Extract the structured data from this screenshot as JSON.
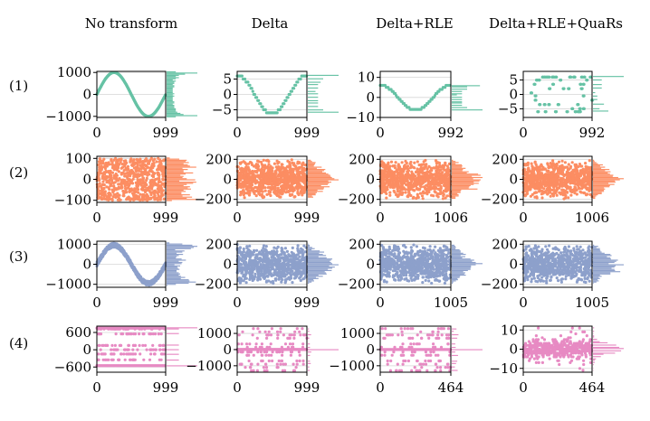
{
  "figure": {
    "column_titles": [
      "No transform",
      "Delta",
      "Delta+RLE",
      "Delta+RLE+QuaRs"
    ],
    "row_labels": [
      "(1)",
      "(2)",
      "(3)",
      "(4)"
    ],
    "row_colors": [
      "#66c2a5",
      "#fc8d62",
      "#8da0cb",
      "#e78ac3"
    ]
  },
  "chart_data": [
    {
      "type": "scatter",
      "row": 1,
      "col": 1,
      "row_label": "(1)",
      "column": "No transform",
      "x": [
        0,
        999
      ],
      "ylim": [
        -1050,
        1050
      ],
      "yticks": [
        {
          "v": 1000,
          "t": "1000"
        },
        {
          "v": 0,
          "t": "0"
        },
        {
          "v": -1000,
          "t": "−1000"
        }
      ],
      "xticks": [
        {
          "v": 0,
          "t": "0"
        },
        {
          "v": 999,
          "t": "999"
        }
      ],
      "pattern": "sine",
      "amplitude": 1000,
      "period": 999,
      "marginal": "histogram"
    },
    {
      "type": "scatter",
      "row": 1,
      "col": 2,
      "row_label": "(1)",
      "column": "Delta",
      "x": [
        0,
        999
      ],
      "ylim": [
        -7.5,
        7.5
      ],
      "yticks": [
        {
          "v": 5,
          "t": "5"
        },
        {
          "v": 0,
          "t": "0"
        },
        {
          "v": -5,
          "t": "−5"
        }
      ],
      "xticks": [
        {
          "v": 0,
          "t": "0"
        },
        {
          "v": 999,
          "t": "999"
        }
      ],
      "pattern": "stepped-cosine",
      "amplitude": 6.3,
      "marginal": "histogram"
    },
    {
      "type": "scatter",
      "row": 1,
      "col": 3,
      "row_label": "(1)",
      "column": "Delta+RLE",
      "x": [
        0,
        992
      ],
      "ylim": [
        -10,
        13
      ],
      "yticks": [
        {
          "v": 10,
          "t": "10"
        },
        {
          "v": 0,
          "t": "0"
        },
        {
          "v": -10,
          "t": "−10"
        }
      ],
      "xticks": [
        {
          "v": 0,
          "t": "0"
        },
        {
          "v": 992,
          "t": "992"
        }
      ],
      "pattern": "stepped-cosine",
      "amplitude": 6.3,
      "marginal": "histogram"
    },
    {
      "type": "scatter",
      "row": 1,
      "col": 4,
      "row_label": "(1)",
      "column": "Delta+RLE+QuaRs",
      "x": [
        0,
        992
      ],
      "ylim": [
        -8,
        8
      ],
      "yticks": [
        {
          "v": 5,
          "t": "5"
        },
        {
          "v": 0,
          "t": "0"
        },
        {
          "v": -5,
          "t": "−5"
        }
      ],
      "xticks": [
        {
          "v": 0,
          "t": "0"
        },
        {
          "v": 992,
          "t": "992"
        }
      ],
      "pattern": "quantized-levels",
      "marginal": "histogram"
    },
    {
      "type": "scatter",
      "row": 2,
      "col": 1,
      "row_label": "(2)",
      "column": "No transform",
      "x": [
        0,
        999
      ],
      "ylim": [
        -110,
        110
      ],
      "yticks": [
        {
          "v": 100,
          "t": "100"
        },
        {
          "v": 0,
          "t": "0"
        },
        {
          "v": -100,
          "t": "−100"
        }
      ],
      "xticks": [
        {
          "v": 0,
          "t": "0"
        },
        {
          "v": 999,
          "t": "999"
        }
      ],
      "pattern": "uniform-noise",
      "amplitude": 100,
      "marginal": "histogram"
    },
    {
      "type": "scatter",
      "row": 2,
      "col": 2,
      "row_label": "(2)",
      "column": "Delta",
      "x": [
        0,
        999
      ],
      "ylim": [
        -230,
        230
      ],
      "yticks": [
        {
          "v": 200,
          "t": "200"
        },
        {
          "v": 0,
          "t": "0"
        },
        {
          "v": -200,
          "t": "−200"
        }
      ],
      "xticks": [
        {
          "v": 0,
          "t": "0"
        },
        {
          "v": 999,
          "t": "999"
        }
      ],
      "pattern": "triangular-noise",
      "amplitude": 200,
      "marginal": "histogram"
    },
    {
      "type": "scatter",
      "row": 2,
      "col": 3,
      "row_label": "(2)",
      "column": "Delta+RLE",
      "x": [
        0,
        1006
      ],
      "ylim": [
        -230,
        230
      ],
      "yticks": [
        {
          "v": 200,
          "t": "200"
        },
        {
          "v": 0,
          "t": "0"
        },
        {
          "v": -200,
          "t": "−200"
        }
      ],
      "xticks": [
        {
          "v": 0,
          "t": "0"
        },
        {
          "v": 1006,
          "t": "1006"
        }
      ],
      "pattern": "triangular-noise",
      "amplitude": 200,
      "marginal": "histogram"
    },
    {
      "type": "scatter",
      "row": 2,
      "col": 4,
      "row_label": "(2)",
      "column": "Delta+RLE+QuaRs",
      "x": [
        0,
        1006
      ],
      "ylim": [
        -230,
        230
      ],
      "yticks": [
        {
          "v": 200,
          "t": "200"
        },
        {
          "v": 0,
          "t": "0"
        },
        {
          "v": -200,
          "t": "−200"
        }
      ],
      "xticks": [
        {
          "v": 0,
          "t": "0"
        },
        {
          "v": 1006,
          "t": "1006"
        }
      ],
      "pattern": "triangular-noise",
      "amplitude": 200,
      "marginal": "histogram"
    },
    {
      "type": "scatter",
      "row": 3,
      "col": 1,
      "row_label": "(3)",
      "column": "No transform",
      "x": [
        0,
        999
      ],
      "ylim": [
        -1150,
        1150
      ],
      "yticks": [
        {
          "v": 1000,
          "t": "1000"
        },
        {
          "v": 0,
          "t": "0"
        },
        {
          "v": -1000,
          "t": "−1000"
        }
      ],
      "xticks": [
        {
          "v": 0,
          "t": "0"
        },
        {
          "v": 999,
          "t": "999"
        }
      ],
      "pattern": "noisy-sine",
      "amplitude": 950,
      "noise": 100,
      "marginal": "histogram"
    },
    {
      "type": "scatter",
      "row": 3,
      "col": 2,
      "row_label": "(3)",
      "column": "Delta",
      "x": [
        0,
        999
      ],
      "ylim": [
        -230,
        230
      ],
      "yticks": [
        {
          "v": 200,
          "t": "200"
        },
        {
          "v": 0,
          "t": "0"
        },
        {
          "v": -200,
          "t": "−200"
        }
      ],
      "xticks": [
        {
          "v": 0,
          "t": "0"
        },
        {
          "v": 999,
          "t": "999"
        }
      ],
      "pattern": "triangular-noise",
      "amplitude": 200,
      "marginal": "histogram"
    },
    {
      "type": "scatter",
      "row": 3,
      "col": 3,
      "row_label": "(3)",
      "column": "Delta+RLE",
      "x": [
        0,
        1005
      ],
      "ylim": [
        -230,
        230
      ],
      "yticks": [
        {
          "v": 200,
          "t": "200"
        },
        {
          "v": 0,
          "t": "0"
        },
        {
          "v": -200,
          "t": "−200"
        }
      ],
      "xticks": [
        {
          "v": 0,
          "t": "0"
        },
        {
          "v": 1005,
          "t": "1005"
        }
      ],
      "pattern": "triangular-noise",
      "amplitude": 200,
      "marginal": "histogram"
    },
    {
      "type": "scatter",
      "row": 3,
      "col": 4,
      "row_label": "(3)",
      "column": "Delta+RLE+QuaRs",
      "x": [
        0,
        1005
      ],
      "ylim": [
        -230,
        230
      ],
      "yticks": [
        {
          "v": 200,
          "t": "200"
        },
        {
          "v": 0,
          "t": "0"
        },
        {
          "v": -200,
          "t": "−200"
        }
      ],
      "xticks": [
        {
          "v": 0,
          "t": "0"
        },
        {
          "v": 1005,
          "t": "1005"
        }
      ],
      "pattern": "triangular-noise",
      "amplitude": 200,
      "marginal": "histogram"
    },
    {
      "type": "scatter",
      "row": 4,
      "col": 1,
      "row_label": "(4)",
      "column": "No transform",
      "x": [
        0,
        999
      ],
      "ylim": [
        -780,
        820
      ],
      "yticks": [
        {
          "v": 600,
          "t": "600"
        },
        {
          "v": 0,
          "t": "0"
        },
        {
          "v": -600,
          "t": "−600"
        }
      ],
      "xticks": [
        {
          "v": 0,
          "t": "0"
        },
        {
          "v": 999,
          "t": "999"
        }
      ],
      "pattern": "discrete-levels",
      "levels": [
        750,
        720,
        550,
        150,
        0,
        -150,
        -350,
        -550
      ],
      "marginal": "histogram"
    },
    {
      "type": "scatter",
      "row": 4,
      "col": 2,
      "row_label": "(4)",
      "column": "Delta",
      "x": [
        0,
        999
      ],
      "ylim": [
        -1400,
        1450
      ],
      "yticks": [
        {
          "v": 1000,
          "t": "1000"
        },
        {
          "v": 0,
          "t": "0"
        },
        {
          "v": -1000,
          "t": "−1000"
        }
      ],
      "xticks": [
        {
          "v": 0,
          "t": "0"
        },
        {
          "v": 999,
          "t": "999"
        }
      ],
      "pattern": "sparse-discrete",
      "levels": [
        1300,
        1100,
        900,
        700,
        350,
        150,
        -150,
        -350,
        -700,
        -900,
        -1100,
        -1300
      ],
      "marginal": "histogram"
    },
    {
      "type": "scatter",
      "row": 4,
      "col": 3,
      "row_label": "(4)",
      "column": "Delta+RLE",
      "x": [
        0,
        464
      ],
      "ylim": [
        -1400,
        1450
      ],
      "yticks": [
        {
          "v": 1000,
          "t": "1000"
        },
        {
          "v": 0,
          "t": "0"
        },
        {
          "v": -1000,
          "t": "−1000"
        }
      ],
      "xticks": [
        {
          "v": 0,
          "t": "0"
        },
        {
          "v": 464,
          "t": "464"
        }
      ],
      "pattern": "sparse-discrete",
      "levels": [
        1300,
        1100,
        900,
        700,
        350,
        150,
        -150,
        -350,
        -700,
        -900,
        -1100,
        -1300
      ],
      "marginal": "histogram"
    },
    {
      "type": "scatter",
      "row": 4,
      "col": 4,
      "row_label": "(4)",
      "column": "Delta+RLE+QuaRs",
      "x": [
        0,
        464
      ],
      "ylim": [
        -12,
        12
      ],
      "yticks": [
        {
          "v": 10,
          "t": "10"
        },
        {
          "v": 0,
          "t": "0"
        },
        {
          "v": -10,
          "t": "−10"
        }
      ],
      "xticks": [
        {
          "v": 0,
          "t": "0"
        },
        {
          "v": 464,
          "t": "464"
        }
      ],
      "pattern": "heavy-tailed-noise",
      "marginal": "histogram"
    }
  ]
}
